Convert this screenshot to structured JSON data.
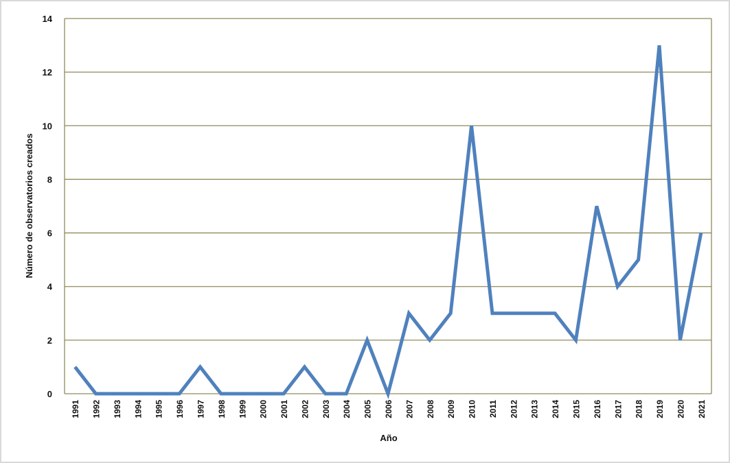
{
  "chart_data": {
    "type": "line",
    "x_label": "Año",
    "y_label": "Número de observatorios creados",
    "categories": [
      "1991",
      "1992",
      "1993",
      "1994",
      "1995",
      "1996",
      "1997",
      "1998",
      "1999",
      "2000",
      "2001",
      "2002",
      "2003",
      "2004",
      "2005",
      "2006",
      "2007",
      "2008",
      "2009",
      "2010",
      "2011",
      "2012",
      "2013",
      "2014",
      "2015",
      "2016",
      "2017",
      "2018",
      "2019",
      "2020",
      "2021"
    ],
    "series": [
      {
        "color": "#4f81bd",
        "values": [
          1,
          0,
          0,
          0,
          0,
          0,
          1,
          0,
          0,
          0,
          0,
          1,
          0,
          0,
          2,
          0,
          3,
          2,
          3,
          10,
          3,
          3,
          3,
          3,
          2,
          7,
          4,
          5,
          13,
          2,
          6
        ]
      }
    ],
    "ylim": [
      0,
      14
    ],
    "yticks": [
      0,
      2,
      4,
      6,
      8,
      10,
      12,
      14
    ],
    "grid": true
  }
}
